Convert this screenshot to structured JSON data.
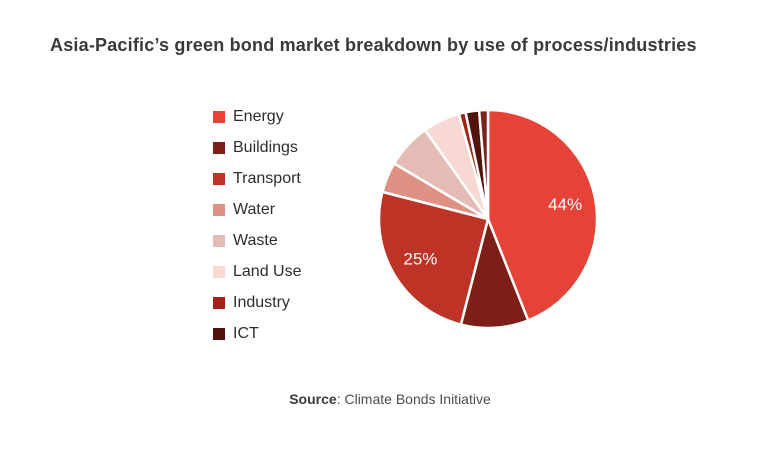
{
  "header": {
    "title": "Asia-Pacific’s green bond market breakdown by use of process/industries"
  },
  "source": {
    "prefix": "Source",
    "separator": ": ",
    "text": "Climate Bonds Initiative"
  },
  "colors": {
    "background": "#ffffff",
    "title_text": "#3a3a3a",
    "legend_text": "#2d2d2d",
    "source_text": "#4d4d4d",
    "slice_divider": "#ffffff"
  },
  "chart_data": {
    "type": "pie",
    "title": "Asia-Pacific’s green bond market breakdown by use of process/industries",
    "direction": "clockwise",
    "start_angle_deg": 0,
    "legend_position": "left",
    "data_labels_visible": [
      "44%",
      "25%"
    ],
    "slices": [
      {
        "label": "Energy",
        "value": 44,
        "color": "#e64338",
        "data_label": "44%"
      },
      {
        "label": "Buildings",
        "value": 10,
        "color": "#7d1f16",
        "data_label": ""
      },
      {
        "label": "Transport",
        "value": 25,
        "color": "#bd3427",
        "data_label": "25%"
      },
      {
        "label": "Water",
        "value": 4.5,
        "color": "#df9184",
        "data_label": ""
      },
      {
        "label": "Waste",
        "value": 6.7,
        "color": "#e4bcb5",
        "data_label": ""
      },
      {
        "label": "Land Use",
        "value": 5.5,
        "color": "#f8d8d2",
        "data_label": ""
      },
      {
        "label": "Industry",
        "value": 1,
        "color": "#a02315",
        "data_label": ""
      },
      {
        "label": "ICT",
        "value": 2,
        "color": "#53130d",
        "data_label": ""
      },
      {
        "label": "",
        "value": 1.3,
        "color": "#7c241b",
        "data_label": ""
      }
    ]
  }
}
